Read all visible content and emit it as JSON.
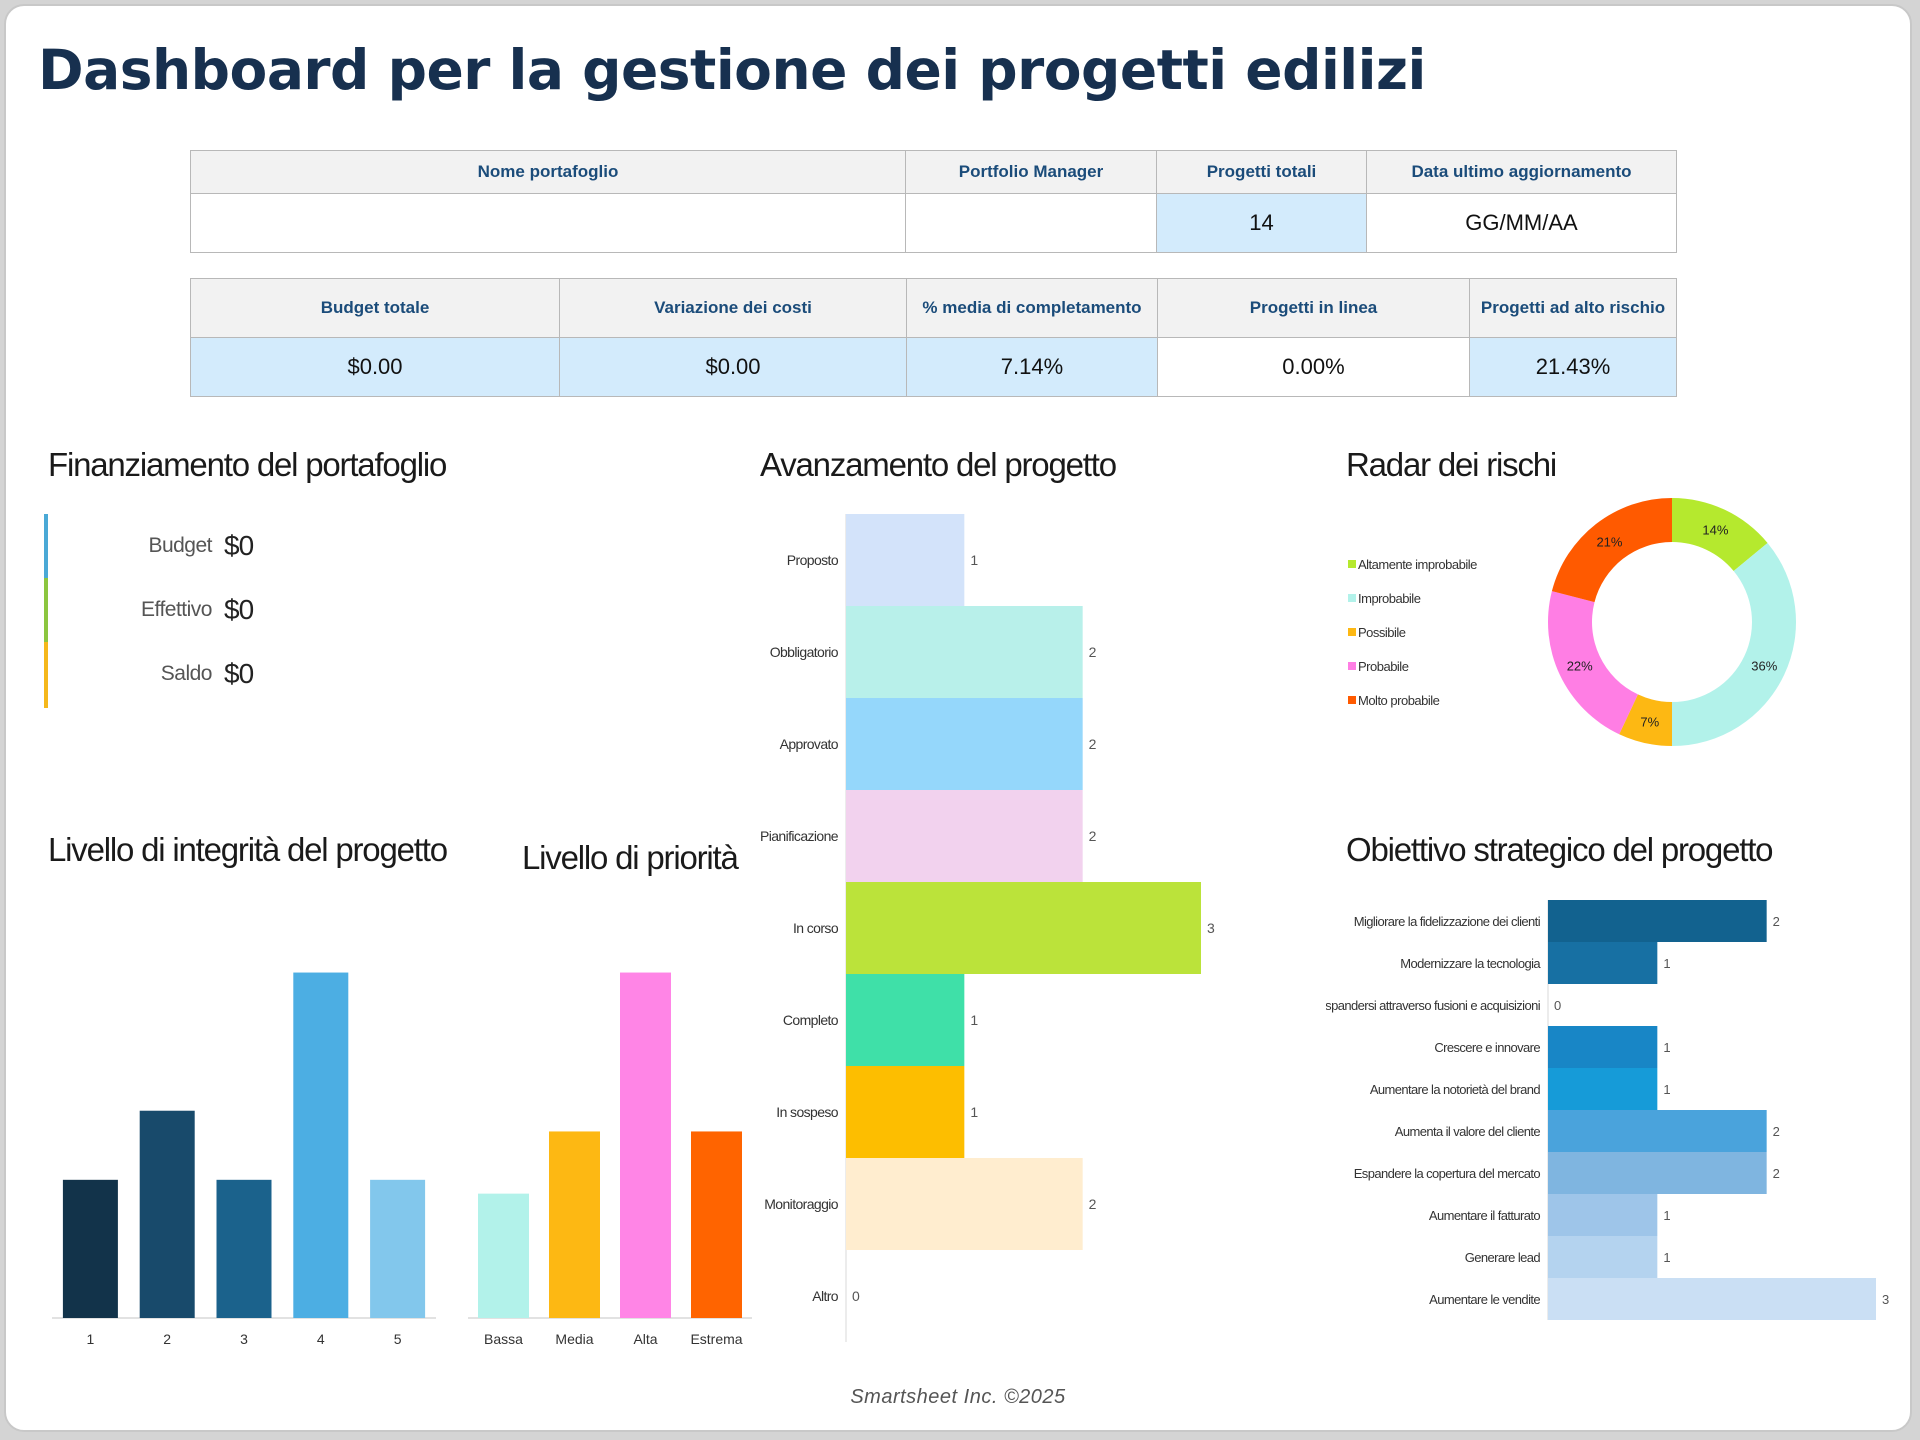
{
  "title": "Dashboard per la gestione dei progetti edilizi",
  "portfolio_table": {
    "headers": [
      "Nome portafoglio",
      "Portfolio Manager",
      "Progetti totali",
      "Data ultimo aggiornamento"
    ],
    "values": [
      "",
      "",
      "14",
      "GG/MM/AA"
    ]
  },
  "kpi_table": {
    "headers": [
      "Budget totale",
      "Variazione dei costi",
      "% media di completamento",
      "Progetti in linea",
      "Progetti ad alto rischio"
    ],
    "values": [
      "$0.00",
      "$0.00",
      "7.14%",
      "0.00%",
      "21.43%"
    ]
  },
  "funding": {
    "title": "Finanziamento del portafoglio",
    "rows": [
      {
        "label": "Budget",
        "value": "$0",
        "color": "#4aa9d6"
      },
      {
        "label": "Effettivo",
        "value": "$0",
        "color": "#8cc63f"
      },
      {
        "label": "Saldo",
        "value": "$0",
        "color": "#f5b81c"
      }
    ]
  },
  "footer": "Smartsheet Inc. ©2025",
  "chart_data": [
    {
      "id": "progress",
      "type": "bar",
      "orientation": "horizontal",
      "title": "Avanzamento del progetto",
      "categories": [
        "Proposto",
        "Obbligatorio",
        "Approvato",
        "Pianificazione",
        "In corso",
        "Completo",
        "In sospeso",
        "Monitoraggio",
        "Altro"
      ],
      "values": [
        1,
        2,
        2,
        2,
        3,
        1,
        1,
        2,
        0
      ],
      "colors": [
        "#d3e3fa",
        "#b8f0ea",
        "#95d7fb",
        "#f2d2ee",
        "#bbe33a",
        "#3fe0a8",
        "#fdbe00",
        "#ffedcf",
        "#eeeeee"
      ],
      "xlim": [
        0,
        3
      ]
    },
    {
      "id": "risk",
      "type": "pie",
      "title": "Radar dei rischi",
      "labels": [
        "Altamente improbabile",
        "Improbabile",
        "Possibile",
        "Probabile",
        "Molto probabile"
      ],
      "values": [
        14,
        36,
        7,
        22,
        21
      ],
      "value_labels": [
        "14%",
        "36%",
        "7%",
        "22%",
        "21%"
      ],
      "colors": [
        "#b5e92e",
        "#b2f2ea",
        "#fdb813",
        "#ff7ee4",
        "#ff5a00"
      ],
      "legend": "left"
    },
    {
      "id": "integrity",
      "type": "bar",
      "title": "Livello di integrità del progetto",
      "categories": [
        "1",
        "2",
        "3",
        "4",
        "5"
      ],
      "values": [
        2,
        3,
        2,
        5,
        2
      ],
      "colors": [
        "#12334a",
        "#184a6b",
        "#1b628c",
        "#4caee3",
        "#82c7ec"
      ],
      "ylim": [
        0,
        5.5
      ]
    },
    {
      "id": "priority",
      "type": "bar",
      "title": "Livello di priorità",
      "categories": [
        "Bassa",
        "Media",
        "Alta",
        "Estrema"
      ],
      "values": [
        1.8,
        2.7,
        5,
        2.7
      ],
      "colors": [
        "#b2f2ea",
        "#fdb813",
        "#ff85e6",
        "#ff6400"
      ],
      "ylim": [
        0,
        5.5
      ]
    },
    {
      "id": "strategic",
      "type": "bar",
      "orientation": "horizontal",
      "title": "Obiettivo strategico del progetto",
      "categories": [
        "Migliorare la fidelizzazione dei clienti",
        "Modernizzare la tecnologia",
        "Espandersi attraverso fusioni e acquisizioni",
        "Crescere e innovare",
        "Aumentare la notorietà del brand",
        "Aumenta il valore del cliente",
        "Espandere la copertura del mercato",
        "Aumentare il fatturato",
        "Generare lead",
        "Aumentare le vendite"
      ],
      "values": [
        2,
        1,
        0,
        1,
        1,
        2,
        2,
        1,
        1,
        3
      ],
      "colors": [
        "#12628f",
        "#1770a3",
        "#1a86c4",
        "#1886c6",
        "#169bd8",
        "#4aa3dc",
        "#7fb5e0",
        "#9ec5e9",
        "#b4d3ef",
        "#cadff4"
      ],
      "xlim": [
        0,
        3
      ]
    }
  ]
}
